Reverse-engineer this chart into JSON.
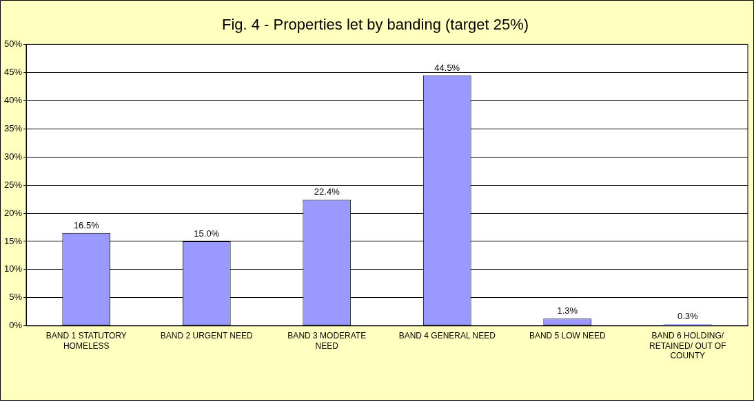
{
  "chart_data": {
    "type": "bar",
    "title": "Fig. 4 - Properties let by banding (target 25%)",
    "categories": [
      "BAND 1 STATUTORY HOMELESS",
      "BAND 2 URGENT NEED",
      "BAND 3 MODERATE NEED",
      "BAND 4 GENERAL NEED",
      "BAND 5 LOW NEED",
      "BAND 6 HOLDING/ RETAINED/ OUT OF COUNTY"
    ],
    "values": [
      16.5,
      15.0,
      22.4,
      44.5,
      1.3,
      0.3
    ],
    "value_labels": [
      "16.5%",
      "15.0%",
      "22.4%",
      "44.5%",
      "1.3%",
      "0.3%"
    ],
    "color": "#9999ff",
    "ylim": [
      0,
      50
    ],
    "yticks": [
      {
        "value": 0,
        "label": "0%"
      },
      {
        "value": 5,
        "label": "5%"
      },
      {
        "value": 10,
        "label": "10%"
      },
      {
        "value": 15,
        "label": "15%"
      },
      {
        "value": 20,
        "label": "20%"
      },
      {
        "value": 25,
        "label": "25%"
      },
      {
        "value": 30,
        "label": "30%"
      },
      {
        "value": 35,
        "label": "35%"
      },
      {
        "value": 40,
        "label": "40%"
      },
      {
        "value": 45,
        "label": "45%"
      },
      {
        "value": 50,
        "label": "50%"
      }
    ],
    "grid": "y",
    "legend": false
  }
}
